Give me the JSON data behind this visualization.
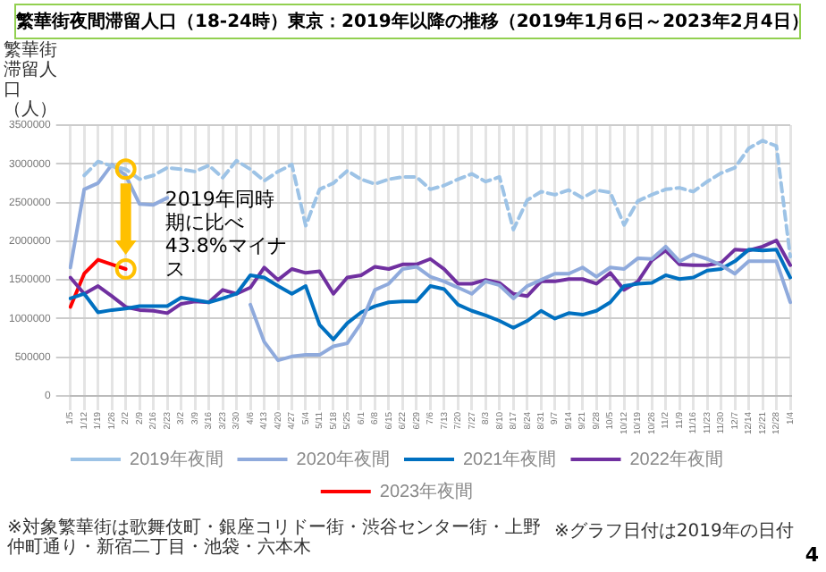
{
  "chart_data": {
    "type": "line",
    "title": "繁華街夜間滞留人口（18-24時）東京：2019年以降の推移（2019年1月6日～2023年2月4日）",
    "ylabel": "繁華街滞留人口（人）",
    "categories": [
      "1/5",
      "1/12",
      "1/19",
      "1/26",
      "2/2",
      "2/9",
      "2/16",
      "2/23",
      "3/2",
      "3/9",
      "3/16",
      "3/23",
      "3/30",
      "4/6",
      "4/13",
      "4/20",
      "4/27",
      "5/4",
      "5/11",
      "5/18",
      "5/25",
      "6/1",
      "6/8",
      "6/15",
      "6/22",
      "6/29",
      "7/6",
      "7/13",
      "7/20",
      "7/27",
      "8/3",
      "8/10",
      "8/17",
      "8/24",
      "8/31",
      "9/7",
      "9/14",
      "9/21",
      "9/28",
      "10/5",
      "10/12",
      "10/19",
      "10/26",
      "11/2",
      "11/9",
      "11/16",
      "11/23",
      "11/30",
      "12/7",
      "12/14",
      "12/21",
      "12/28",
      "1/4"
    ],
    "series": [
      {
        "name": "2019年夜間",
        "color": "#9dc3e6",
        "line_style": "dashed",
        "values": [
          null,
          2850000,
          3030000,
          2970000,
          2930000,
          2800000,
          2850000,
          2950000,
          2930000,
          2900000,
          2980000,
          2820000,
          3040000,
          2930000,
          2780000,
          2900000,
          2990000,
          2200000,
          2670000,
          2750000,
          2910000,
          2800000,
          2740000,
          2800000,
          2830000,
          2830000,
          2670000,
          2720000,
          2800000,
          2870000,
          2770000,
          2830000,
          2150000,
          2530000,
          2640000,
          2600000,
          2660000,
          2560000,
          2660000,
          2630000,
          2210000,
          2520000,
          2600000,
          2670000,
          2690000,
          2640000,
          2770000,
          2880000,
          2950000,
          3200000,
          3300000,
          3230000,
          1800000
        ]
      },
      {
        "name": "2020年夜間",
        "color": "#8faadc",
        "values": [
          1660000,
          2670000,
          2750000,
          2990000,
          2850000,
          2480000,
          2470000,
          2560000,
          null,
          null,
          null,
          null,
          null,
          1180000,
          700000,
          460000,
          510000,
          530000,
          530000,
          640000,
          680000,
          940000,
          1370000,
          1450000,
          1640000,
          1670000,
          1540000,
          1480000,
          1400000,
          1320000,
          1480000,
          1430000,
          1260000,
          1420000,
          1500000,
          1580000,
          1580000,
          1660000,
          1540000,
          1660000,
          1640000,
          1780000,
          1770000,
          1930000,
          1740000,
          1830000,
          1770000,
          1690000,
          1580000,
          1740000,
          1740000,
          1740000,
          1210000
        ]
      },
      {
        "name": "2021年夜間",
        "color": "#0070c0",
        "values": [
          1260000,
          1320000,
          1080000,
          1110000,
          1130000,
          1160000,
          1160000,
          1160000,
          1270000,
          1240000,
          1210000,
          1260000,
          1320000,
          1560000,
          1530000,
          1420000,
          1320000,
          1420000,
          920000,
          730000,
          940000,
          1080000,
          1160000,
          1210000,
          1220000,
          1220000,
          1420000,
          1380000,
          1180000,
          1100000,
          1040000,
          970000,
          880000,
          970000,
          1100000,
          1000000,
          1070000,
          1050000,
          1100000,
          1210000,
          1420000,
          1450000,
          1460000,
          1560000,
          1510000,
          1530000,
          1620000,
          1640000,
          1740000,
          1890000,
          1880000,
          1890000,
          1530000
        ]
      },
      {
        "name": "2022年夜間",
        "color": "#7030a0",
        "values": [
          1530000,
          1320000,
          1420000,
          1290000,
          1150000,
          1110000,
          1100000,
          1070000,
          1190000,
          1220000,
          1210000,
          1370000,
          1320000,
          1400000,
          1660000,
          1500000,
          1640000,
          1590000,
          1610000,
          1320000,
          1530000,
          1560000,
          1670000,
          1640000,
          1700000,
          1700000,
          1770000,
          1640000,
          1450000,
          1450000,
          1500000,
          1460000,
          1320000,
          1290000,
          1480000,
          1480000,
          1510000,
          1510000,
          1450000,
          1590000,
          1370000,
          1480000,
          1750000,
          1880000,
          1700000,
          1690000,
          1690000,
          1720000,
          1890000,
          1880000,
          1930000,
          2010000,
          1690000
        ]
      },
      {
        "name": "2023年夜間",
        "color": "#ff0000",
        "values": [
          1150000,
          1580000,
          1760000,
          1700000,
          1640000,
          null,
          null,
          null,
          null,
          null,
          null,
          null,
          null,
          null,
          null,
          null,
          null,
          null,
          null,
          null,
          null,
          null,
          null,
          null,
          null,
          null,
          null,
          null,
          null,
          null,
          null,
          null,
          null,
          null,
          null,
          null,
          null,
          null,
          null,
          null,
          null,
          null,
          null,
          null,
          null,
          null,
          null,
          null,
          null,
          null,
          null,
          null,
          null
        ]
      }
    ],
    "ylim": [
      0,
      3500000
    ],
    "yticks": [
      0,
      500000,
      1000000,
      1500000,
      2000000,
      2500000,
      3000000,
      3500000
    ],
    "grid": true,
    "legend": "bottom",
    "marker": "none",
    "line_style": "solid",
    "annotations": [
      "2019年同時期に比べ43.8%マイナス",
      "※対象繁華街は歌舞伎町・銀座コリドー街・渋谷センター街・上野仲町通り・新宿二丁目・池袋・六本木",
      "※グラフ日付は2019年の日付",
      "4"
    ]
  }
}
